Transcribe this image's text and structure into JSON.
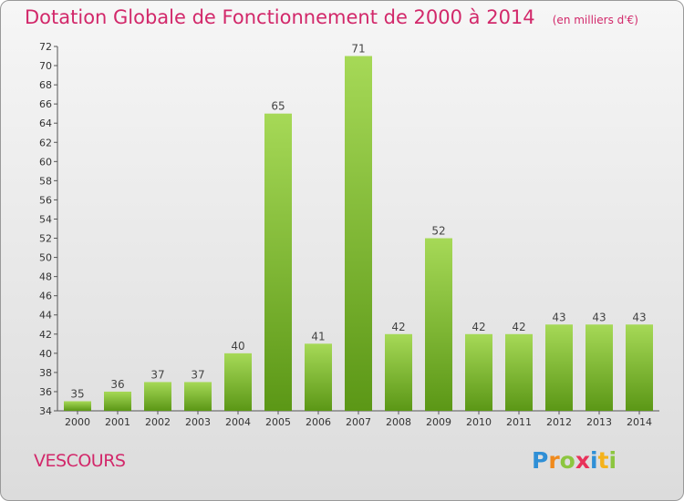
{
  "title": "Dotation Globale de Fonctionnement de 2000 à 2014",
  "subtitle": "(en milliers d'€)",
  "commune": "VESCOURS",
  "logo": {
    "letters": [
      {
        "ch": "P",
        "color": "#2f8fd6"
      },
      {
        "ch": "r",
        "color": "#f08a1c"
      },
      {
        "ch": "o",
        "color": "#8cc63f"
      },
      {
        "ch": "x",
        "color": "#e8325a"
      },
      {
        "ch": "i",
        "color": "#2f8fd6"
      },
      {
        "ch": "t",
        "color": "#f5b21b"
      },
      {
        "ch": "i",
        "color": "#8cc63f"
      }
    ]
  },
  "colors": {
    "accent": "#d2286a",
    "bar_light": "#9fd44f",
    "bar_dark": "#5e9a17"
  },
  "chart_data": {
    "type": "bar",
    "title": "Dotation Globale de Fonctionnement de 2000 à 2014",
    "subtitle": "(en milliers d'€)",
    "categories": [
      "2000",
      "2001",
      "2002",
      "2003",
      "2004",
      "2005",
      "2006",
      "2007",
      "2008",
      "2009",
      "2010",
      "2011",
      "2012",
      "2013",
      "2014"
    ],
    "values": [
      35,
      36,
      37,
      37,
      40,
      65,
      41,
      71,
      42,
      52,
      42,
      42,
      43,
      43,
      43
    ],
    "ylim": [
      34,
      72
    ],
    "yticks": [
      34,
      36,
      38,
      40,
      42,
      44,
      46,
      48,
      50,
      52,
      54,
      56,
      58,
      60,
      62,
      64,
      66,
      68,
      70,
      72
    ],
    "grid": false,
    "data_labels": true
  }
}
